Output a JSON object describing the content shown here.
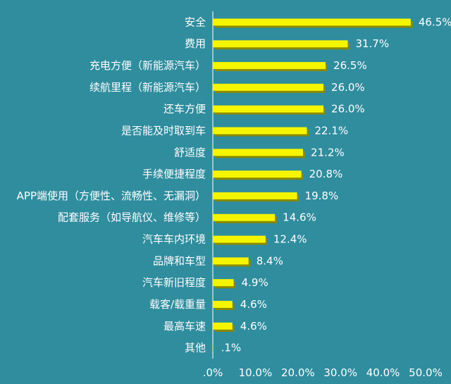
{
  "chart_data": {
    "type": "bar",
    "orientation": "horizontal",
    "categories": [
      "安全",
      "费用",
      "充电方便（新能源汽车）",
      "续航里程（新能源汽车）",
      "还车方便",
      "是否能及时取到车",
      "舒适度",
      "手续便捷程度",
      "APP端使用（方便性、流畅性、无漏洞）",
      "配套服务（如导航仪、维修等）",
      "汽车车内环境",
      "品牌和车型",
      "汽车新旧程度",
      "载客/载重量",
      "最高车速",
      "其他"
    ],
    "values": [
      46.5,
      31.7,
      26.5,
      26.0,
      26.0,
      22.1,
      21.2,
      20.8,
      19.8,
      14.6,
      12.4,
      8.4,
      4.9,
      4.6,
      4.6,
      0.1
    ],
    "value_labels": [
      "46.5%",
      "31.7%",
      "26.5%",
      "26.0%",
      "26.0%",
      "22.1%",
      "21.2%",
      "20.8%",
      "19.8%",
      "14.6%",
      "12.4%",
      "8.4%",
      "4.9%",
      "4.6%",
      "4.6%",
      ".1%"
    ],
    "xlim": [
      0,
      50
    ],
    "x_ticks": [
      ".0%",
      "10.0%",
      "20.0%",
      "30.0%",
      "40.0%",
      "50.0%"
    ],
    "grid": false,
    "bar_color": "#f5f500",
    "bar_shadow_color": "#8a8a00",
    "background_color": "#2f8d9e",
    "text_color": "#ffffff",
    "axis_color": "#ffffff"
  }
}
